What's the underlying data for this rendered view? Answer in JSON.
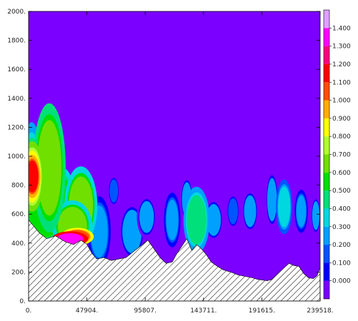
{
  "chart_data": {
    "type": "heatmap",
    "title": "",
    "xlabel": "",
    "ylabel": "",
    "xlim": [
      0,
      239518
    ],
    "ylim": [
      0,
      2000
    ],
    "x_ticks": [
      0,
      47904,
      95807,
      143711,
      191615,
      239518
    ],
    "x_tick_labels": [
      "0.",
      "47904.",
      "95807.",
      "143711.",
      "191615.",
      "239518."
    ],
    "y_ticks": [
      0,
      200,
      400,
      600,
      800,
      1000,
      1200,
      1400,
      1600,
      1800,
      2000
    ],
    "y_tick_labels": [
      "0.",
      "200.",
      "400.",
      "600.",
      "800.",
      "1000.",
      "1200.",
      "1400.",
      "1600.",
      "1800.",
      "2000."
    ],
    "colorbar": {
      "levels": [
        0.0,
        0.1,
        0.2,
        0.3,
        0.4,
        0.5,
        0.6,
        0.7,
        0.8,
        0.9,
        1.0,
        1.1,
        1.2,
        1.3,
        1.4,
        1.5
      ],
      "labels": [
        "0.000",
        "0.100",
        "0.200",
        "0.300",
        "0.400",
        "0.500",
        "0.600",
        "0.700",
        "0.800",
        "0.900",
        "1.000",
        "1.100",
        "1.200",
        "1.300",
        "1.400"
      ],
      "colors": [
        "#7b00ff",
        "#0000ff",
        "#0055ff",
        "#00a0ff",
        "#00d8e0",
        "#00e07a",
        "#00e000",
        "#70e000",
        "#b0ff30",
        "#ffff00",
        "#ffb000",
        "#ff5000",
        "#ff0000",
        "#ff0080",
        "#ff00ff",
        "#e0a0ff"
      ]
    },
    "background_value": 0.05,
    "terrain": {
      "x": [
        0,
        4000,
        9000,
        15000,
        22000,
        30000,
        37000,
        43000,
        48000,
        52000,
        56000,
        62000,
        68000,
        74000,
        80000,
        86000,
        92000,
        98000,
        103000,
        108000,
        113000,
        118000,
        122000,
        126000,
        130000,
        134000,
        138000,
        142000,
        146000,
        150000,
        155000,
        160000,
        166000,
        172000,
        178000,
        184000,
        188000,
        192000,
        196000,
        200000,
        205000,
        210000,
        214000,
        218000,
        222000,
        226000,
        230000,
        234000,
        237000,
        239518
      ],
      "y": [
        560,
        520,
        470,
        430,
        450,
        410,
        390,
        420,
        390,
        330,
        290,
        300,
        280,
        290,
        300,
        340,
        380,
        420,
        360,
        300,
        260,
        270,
        330,
        380,
        430,
        350,
        390,
        360,
        320,
        270,
        240,
        215,
        200,
        180,
        170,
        160,
        150,
        145,
        140,
        150,
        190,
        230,
        260,
        245,
        240,
        190,
        160,
        155,
        175,
        230
      ]
    },
    "features": [
      {
        "x": 3000,
        "y": 860,
        "value": 1.25,
        "halfwidth": 5000,
        "halfheight": 110
      },
      {
        "x": 3000,
        "y": 860,
        "value": 0.95,
        "halfwidth": 7000,
        "halfheight": 180
      },
      {
        "x": 2500,
        "y": 830,
        "value": 0.55,
        "halfwidth": 7000,
        "halfheight": 300
      },
      {
        "x": 16000,
        "y": 1080,
        "value": 0.6,
        "halfwidth": 6000,
        "halfheight": 150
      },
      {
        "x": 17000,
        "y": 920,
        "value": 0.75,
        "halfwidth": 10000,
        "halfheight": 330
      },
      {
        "x": 14000,
        "y": 620,
        "value": 0.6,
        "halfwidth": 14000,
        "halfheight": 180
      },
      {
        "x": 28000,
        "y": 650,
        "value": 0.65,
        "halfwidth": 8000,
        "halfheight": 200
      },
      {
        "x": 43000,
        "y": 660,
        "value": 0.7,
        "halfwidth": 10000,
        "halfheight": 200
      },
      {
        "x": 36000,
        "y": 520,
        "value": 0.7,
        "halfwidth": 12000,
        "halfheight": 130
      },
      {
        "x": 34000,
        "y": 430,
        "value": 1.4,
        "halfwidth": 11000,
        "halfheight": 38
      },
      {
        "x": 40000,
        "y": 445,
        "value": 1.15,
        "halfwidth": 10000,
        "halfheight": 45
      },
      {
        "x": 58000,
        "y": 480,
        "value": 0.35,
        "halfwidth": 7000,
        "halfheight": 180
      },
      {
        "x": 70000,
        "y": 760,
        "value": 0.25,
        "halfwidth": 3500,
        "halfheight": 80
      },
      {
        "x": 85000,
        "y": 480,
        "value": 0.3,
        "halfwidth": 8000,
        "halfheight": 150
      },
      {
        "x": 97000,
        "y": 580,
        "value": 0.3,
        "halfwidth": 6000,
        "halfheight": 110
      },
      {
        "x": 118000,
        "y": 560,
        "value": 0.35,
        "halfwidth": 5000,
        "halfheight": 140
      },
      {
        "x": 130000,
        "y": 700,
        "value": 0.3,
        "halfwidth": 4000,
        "halfheight": 120
      },
      {
        "x": 138000,
        "y": 560,
        "value": 0.5,
        "halfwidth": 8000,
        "halfheight": 170
      },
      {
        "x": 152000,
        "y": 560,
        "value": 0.3,
        "halfwidth": 6000,
        "halfheight": 110
      },
      {
        "x": 168000,
        "y": 620,
        "value": 0.25,
        "halfwidth": 4000,
        "halfheight": 90
      },
      {
        "x": 182000,
        "y": 620,
        "value": 0.3,
        "halfwidth": 5000,
        "halfheight": 110
      },
      {
        "x": 200000,
        "y": 700,
        "value": 0.3,
        "halfwidth": 4000,
        "halfheight": 150
      },
      {
        "x": 210000,
        "y": 650,
        "value": 0.45,
        "halfwidth": 5000,
        "halfheight": 140
      },
      {
        "x": 224000,
        "y": 620,
        "value": 0.35,
        "halfwidth": 4000,
        "halfheight": 110
      },
      {
        "x": 236000,
        "y": 590,
        "value": 0.3,
        "halfwidth": 3000,
        "halfheight": 100
      }
    ],
    "grid": false,
    "legend": "right colorbar"
  }
}
